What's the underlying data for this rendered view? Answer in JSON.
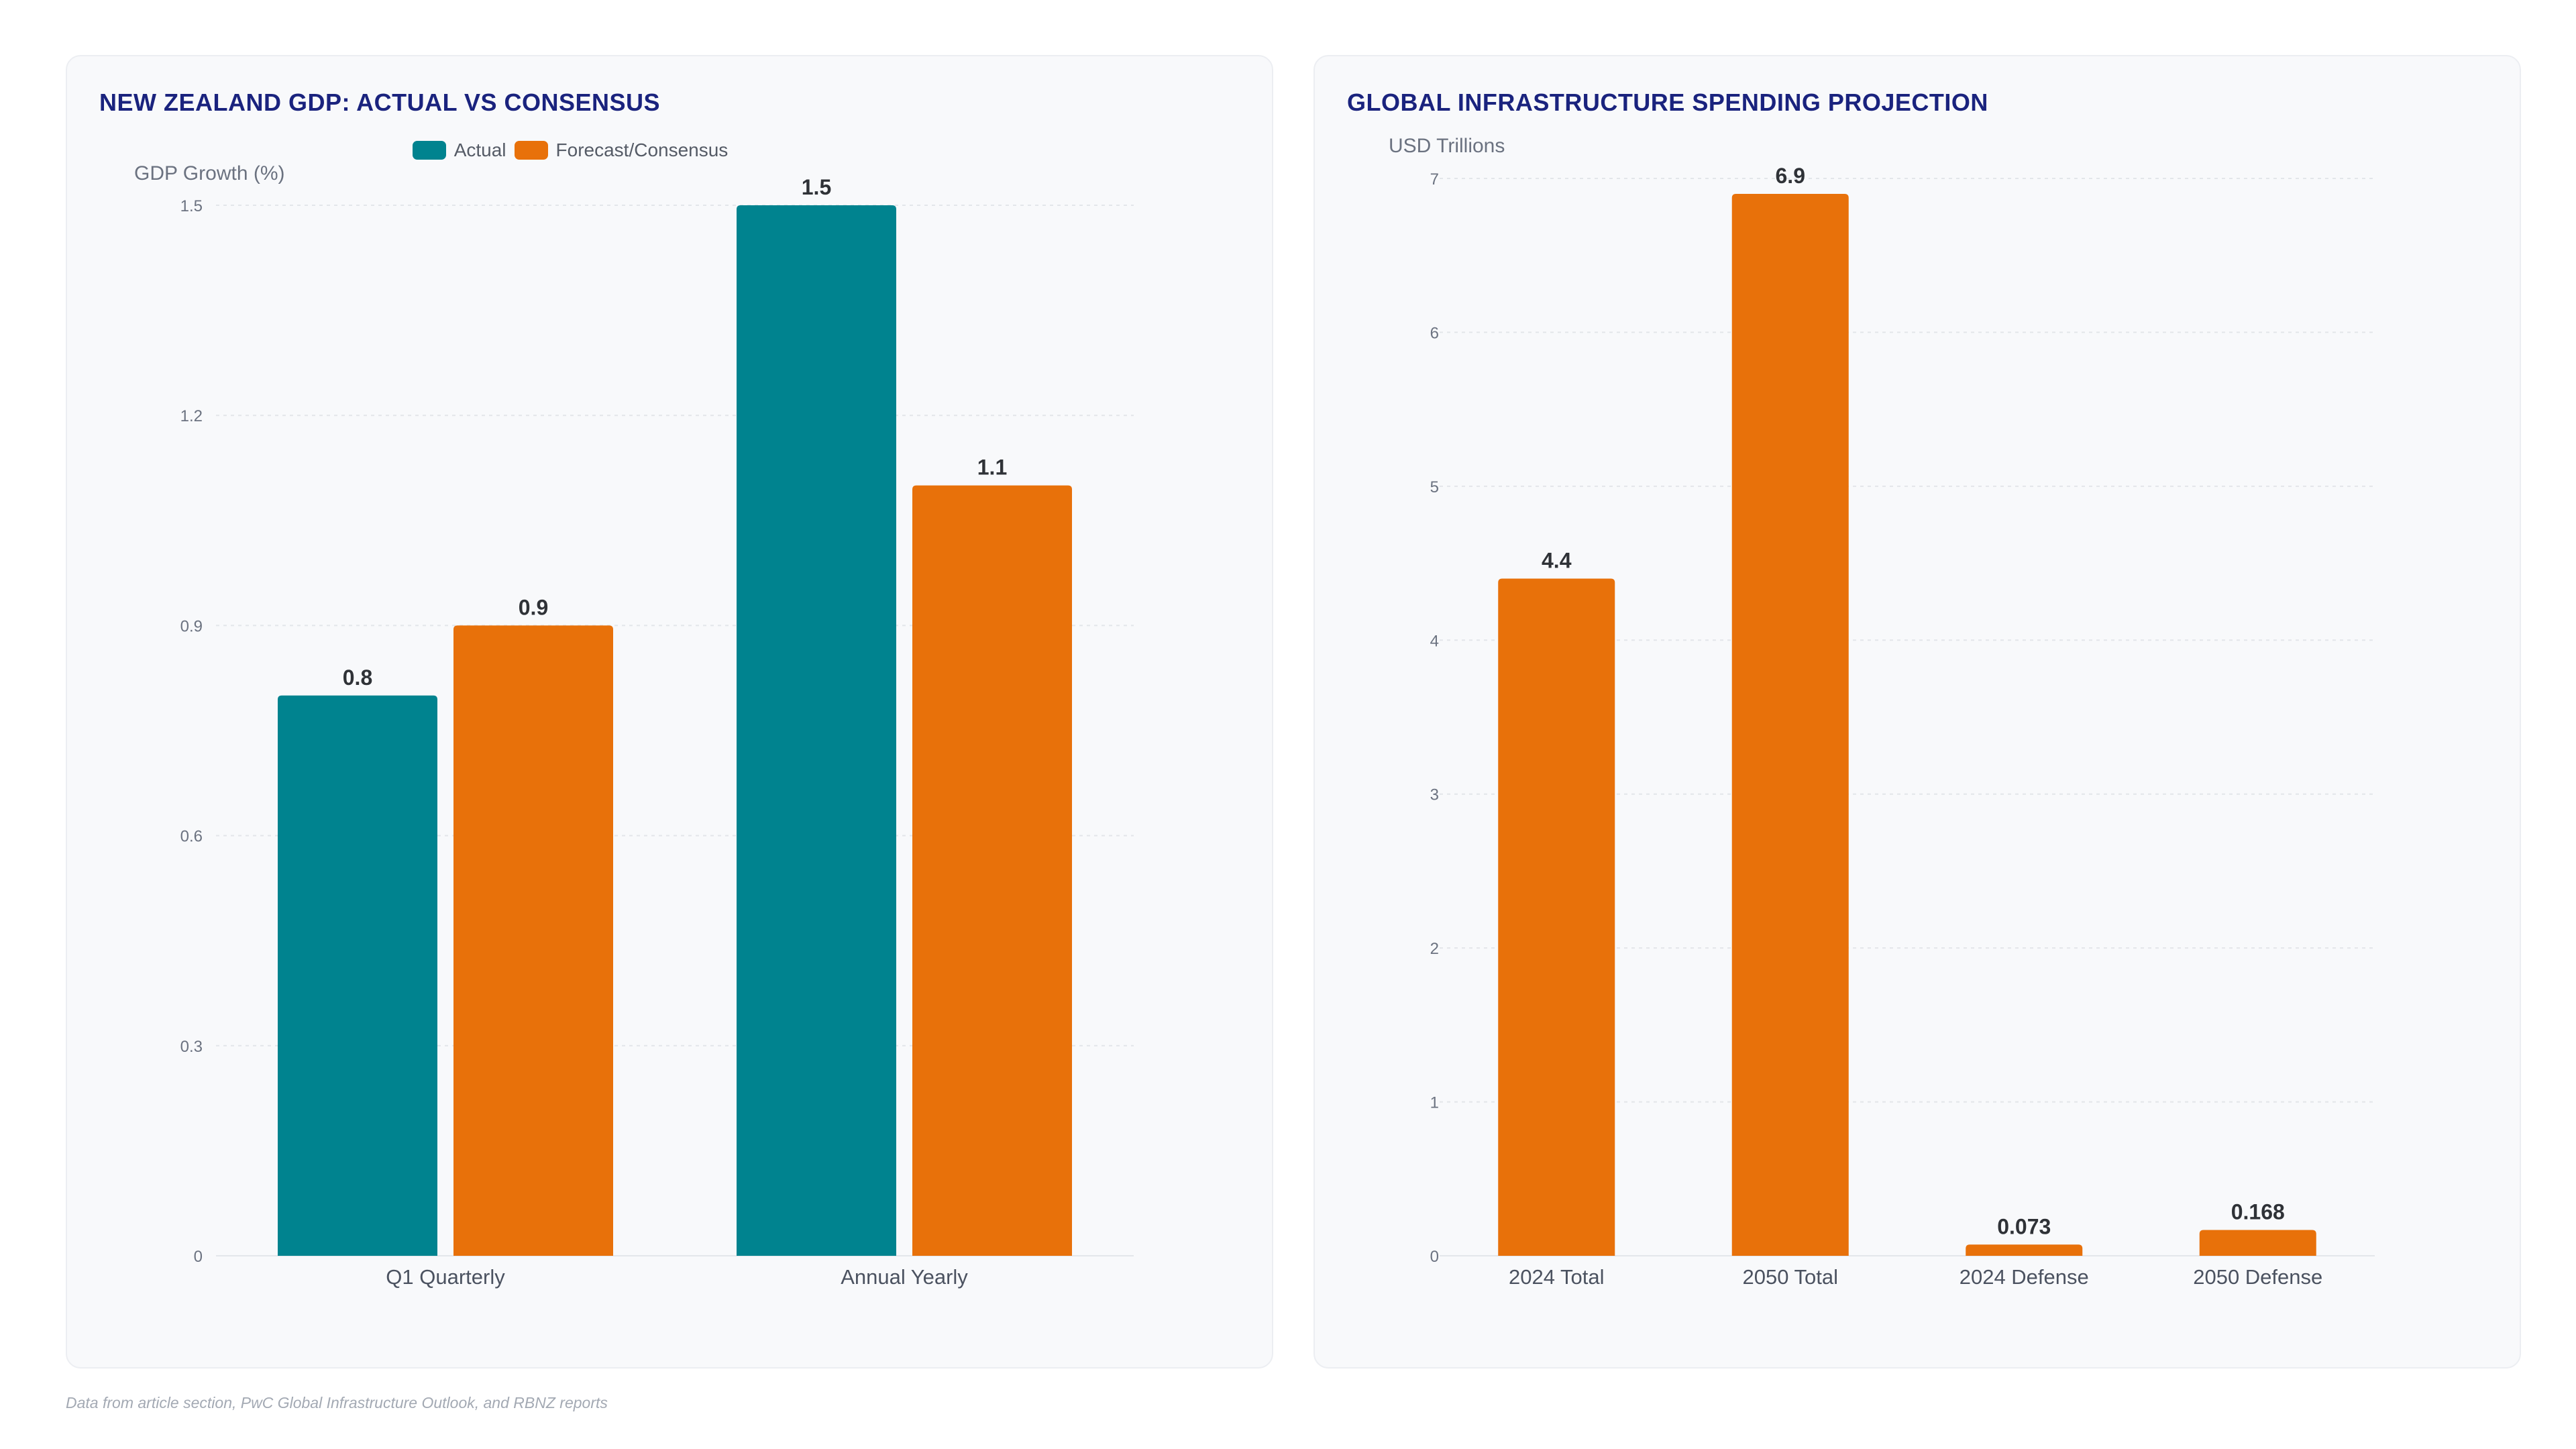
{
  "footer": {
    "source": "Data from article section, PwC Global Infrastructure Outlook, and RBNZ reports"
  },
  "colors": {
    "actual": "#00838f",
    "forecast": "#e8710a",
    "title": "#1a237e"
  },
  "chart_data": [
    {
      "type": "bar",
      "title": "NEW ZEALAND GDP: ACTUAL VS CONSENSUS",
      "ylabel": "GDP Growth (%)",
      "xlabel": "",
      "categories": [
        "Q1 Quarterly",
        "Annual Yearly"
      ],
      "series": [
        {
          "name": "Actual",
          "values": [
            0.8,
            1.5
          ],
          "color": "#00838f"
        },
        {
          "name": "Forecast/Consensus",
          "values": [
            0.9,
            1.1
          ],
          "color": "#e8710a"
        }
      ],
      "value_labels": [
        [
          "0.8",
          "1.5"
        ],
        [
          "0.9",
          "1.1"
        ]
      ],
      "ylim": [
        0,
        1.5
      ],
      "yticks": [
        0,
        0.3,
        0.6,
        0.9,
        1.2,
        1.5
      ],
      "ytick_labels": [
        "0",
        "0.3",
        "0.6",
        "0.9",
        "1.2",
        "1.5"
      ],
      "grid": true,
      "legend": "top-center"
    },
    {
      "type": "bar",
      "title": "GLOBAL INFRASTRUCTURE SPENDING PROJECTION",
      "ylabel": "USD Trillions",
      "xlabel": "",
      "categories": [
        "2024 Total",
        "2050 Total",
        "2024 Defense",
        "2050 Defense"
      ],
      "series": [
        {
          "values": [
            4.4,
            6.9,
            0.073,
            0.168
          ],
          "color": "#e8710a"
        }
      ],
      "value_labels": [
        [
          "4.4",
          "6.9",
          "0.073",
          "0.168"
        ]
      ],
      "ylim": [
        0,
        7
      ],
      "yticks": [
        0,
        1,
        2,
        3,
        4,
        5,
        6,
        7
      ],
      "ytick_labels": [
        "0",
        "1",
        "2",
        "3",
        "4",
        "5",
        "6",
        "7"
      ],
      "grid": true,
      "legend": "none"
    }
  ]
}
